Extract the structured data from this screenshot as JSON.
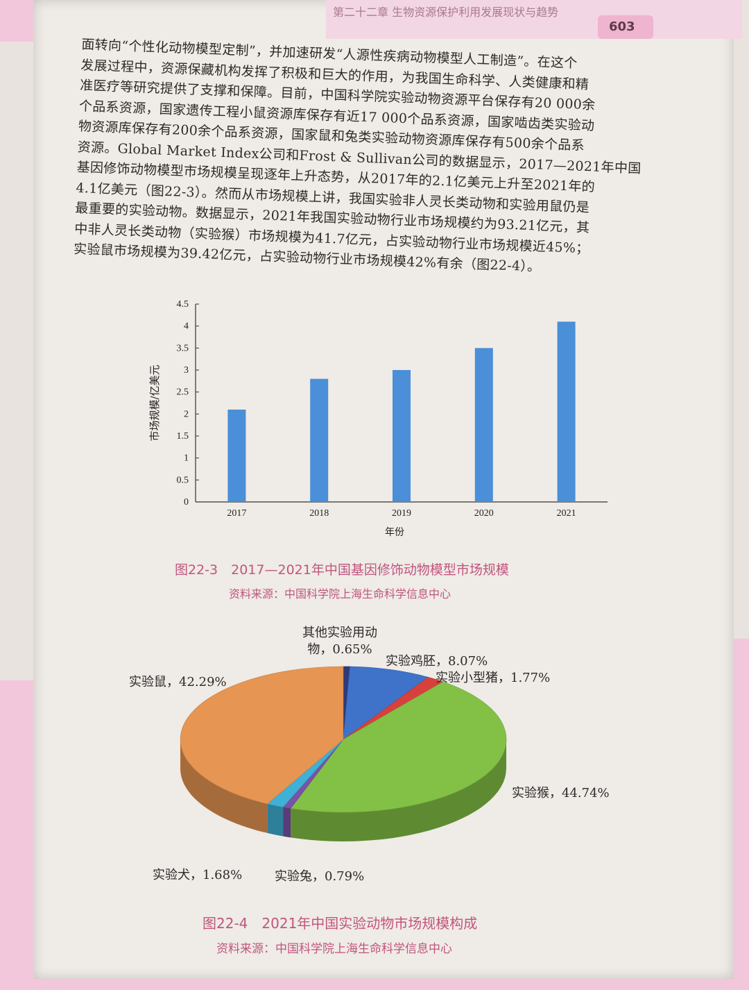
{
  "header": {
    "chapter": "第二十二章  生物资源保护利用发展现状与趋势",
    "page_number": "603"
  },
  "paragraph": [
    "面转向“个性化动物模型定制”，并加速研发“人源性疾病动物模型人工制造”。在这个",
    "发展过程中，资源保藏机构发挥了积极和巨大的作用，为我国生命科学、人类健康和精",
    "准医疗等研究提供了支撑和保障。目前，中国科学院实验动物资源平台保存有20 000余",
    "个品系资源，国家遗传工程小鼠资源库保存有近17 000个品系资源，国家啮齿类实验动",
    "物资源库保存有200余个品系资源，国家鼠和兔类实验动物资源库保存有500余个品系",
    "资源。Global Market Index公司和Frost & Sullivan公司的数据显示，2017—2021年中国",
    "基因修饰动物模型市场规模呈现逐年上升态势，从2017年的2.1亿美元上升至2021年的",
    "4.1亿美元（图22-3）。然而从市场规模上讲，我国实验非人灵长类动物和实验用鼠仍是",
    "最重要的实验动物。数据显示，2021年我国实验动物行业市场规模约为93.21亿元，其",
    "中非人灵长类动物（实验猴）市场规模为41.7亿元，占实验动物行业市场规模近45%；",
    "实验鼠市场规模为39.42亿元，占实验动物行业市场规模42%有余（图22-4）。"
  ],
  "fig1_caption": "图22-3　2017—2021年中国基因修饰动物模型市场规模",
  "fig1_source": "资料来源：中国科学院上海生命科学信息中心",
  "fig2_caption": "图22-4　2021年中国实验动物市场规模构成",
  "fig2_source": "资料来源：中国科学院上海生命科学信息中心",
  "chart_data": [
    {
      "type": "bar",
      "categories": [
        "2017",
        "2018",
        "2019",
        "2020",
        "2021"
      ],
      "values": [
        2.1,
        2.8,
        3.0,
        3.5,
        4.1
      ],
      "xlabel": "年份",
      "ylabel": "市场规模/亿美元",
      "ylim": [
        0,
        4.5
      ],
      "yticks": [
        "0",
        "0.5",
        "1",
        "1.5",
        "2",
        "2.5",
        "3",
        "3.5",
        "4",
        "4.5"
      ],
      "grid": false,
      "bar_color": "#4a8fd8"
    },
    {
      "type": "pie",
      "slices": [
        {
          "label": "其他实验用动物，0.65%",
          "value": 0.65,
          "color": "#2e3b78"
        },
        {
          "label": "实验鸡胚，8.07%",
          "value": 8.07,
          "color": "#3f73c9"
        },
        {
          "label": "实验小型猪，1.77%",
          "value": 1.77,
          "color": "#d8403c"
        },
        {
          "label": "实验猴，44.74%",
          "value": 44.74,
          "color": "#82c146"
        },
        {
          "label": "实验兔，0.79%",
          "value": 0.79,
          "color": "#7a52a8"
        },
        {
          "label": "实验犬，1.68%",
          "value": 1.68,
          "color": "#3fb0d6"
        },
        {
          "label": "实验鼠，42.29%",
          "value": 42.29,
          "color": "#e79552"
        }
      ],
      "style": "3d"
    }
  ]
}
